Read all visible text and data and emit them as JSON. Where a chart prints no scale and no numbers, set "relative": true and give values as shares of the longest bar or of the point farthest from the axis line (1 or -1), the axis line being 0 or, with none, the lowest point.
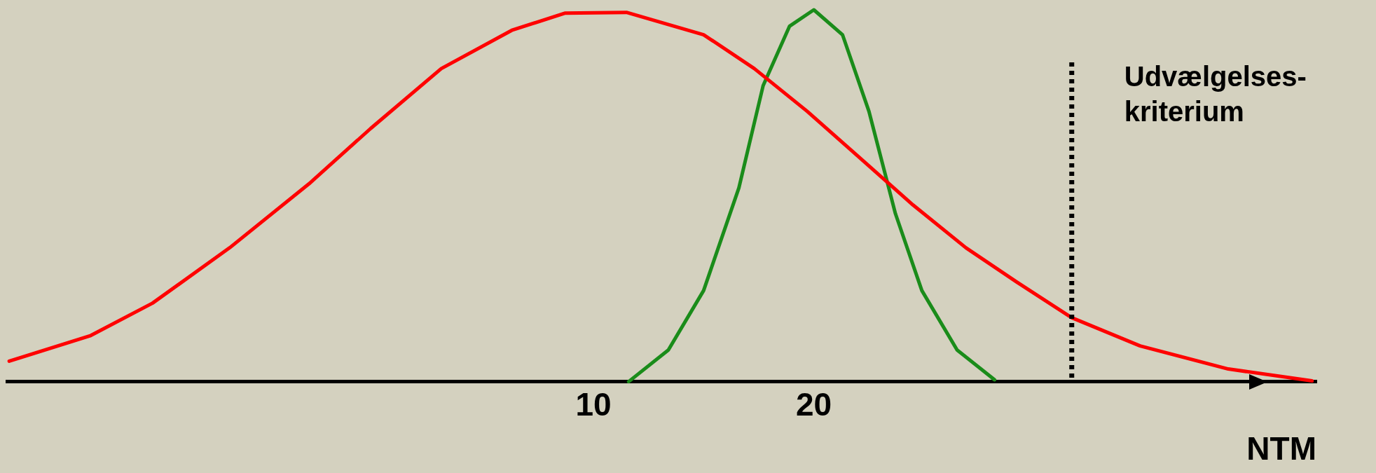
{
  "chart_data": {
    "type": "line",
    "relative": true,
    "xlabel": "NTM",
    "xlim": [
      -16.6,
      42.8
    ],
    "xticks": [
      10,
      20
    ],
    "tick_labels": "x",
    "grid": false,
    "legend": false,
    "marker": "none",
    "line_style": "solid",
    "series": [
      {
        "color": "#ff0000",
        "x": [
          -16.5,
          -12.8,
          -10.0,
          -6.5,
          -2.9,
          -0.1,
          3.1,
          6.3,
          8.7,
          11.5,
          15.0,
          17.3,
          19.7,
          22.1,
          24.5,
          26.9,
          29.2,
          31.7,
          34.8,
          38.8,
          42.6
        ],
        "values": [
          0.055,
          0.124,
          0.211,
          0.36,
          0.532,
          0.681,
          0.842,
          0.945,
          0.991,
          0.993,
          0.933,
          0.842,
          0.727,
          0.601,
          0.475,
          0.36,
          0.268,
          0.172,
          0.096,
          0.034,
          0.002
        ]
      },
      {
        "color": "#1a8c1a",
        "x": [
          11.6,
          13.4,
          15.0,
          16.6,
          17.7,
          18.9,
          20.0,
          21.3,
          22.5,
          23.7,
          24.9,
          26.5,
          28.2
        ],
        "values": [
          0,
          0.085,
          0.245,
          0.521,
          0.796,
          0.956,
          1,
          0.933,
          0.727,
          0.452,
          0.245,
          0.085,
          0.005
        ]
      }
    ],
    "ref_lines": [
      {
        "axis": "x",
        "value": 31.7,
        "label": "Udvælgelses-\nkriterium",
        "color": "#000000",
        "line_style": "dotted"
      }
    ]
  }
}
